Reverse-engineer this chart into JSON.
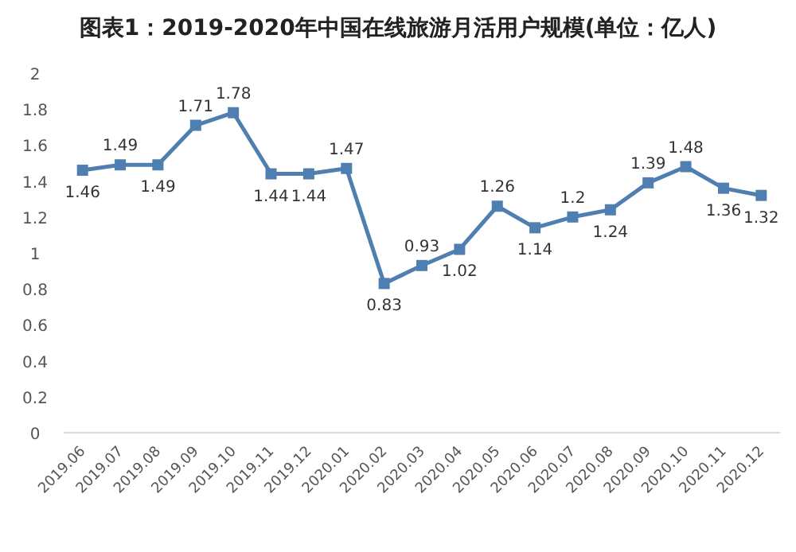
{
  "chart_data": {
    "type": "line",
    "title": "图表1：2019-2020年中国在线旅游月活用户规模(单位：亿人)",
    "categories": [
      "2019.06",
      "2019.07",
      "2019.08",
      "2019.09",
      "2019.10",
      "2019.11",
      "2019.12",
      "2020.01",
      "2020.02",
      "2020.03",
      "2020.04",
      "2020.05",
      "2020.06",
      "2020.07",
      "2020.08",
      "2020.09",
      "2020.10",
      "2020.11",
      "2020.12"
    ],
    "series": [
      {
        "color": "#4f7fb0",
        "values": [
          1.46,
          1.49,
          1.49,
          1.71,
          1.78,
          1.44,
          1.44,
          1.47,
          0.83,
          0.93,
          1.02,
          1.26,
          1.14,
          1.2,
          1.24,
          1.39,
          1.48,
          1.36,
          1.32
        ]
      }
    ],
    "ylim": [
      0,
      2
    ],
    "yticks": [
      0,
      0.2,
      0.4,
      0.6,
      0.8,
      1,
      1.2,
      1.4,
      1.6,
      1.8,
      2
    ],
    "marker": "square",
    "line_style": "solid",
    "data_labels": true
  }
}
